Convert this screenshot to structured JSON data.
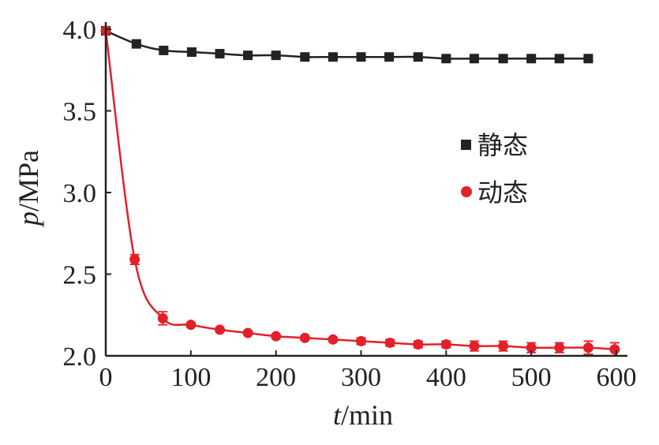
{
  "chart_data": {
    "type": "line",
    "xlabel_var": "t",
    "xlabel_unit": "/min",
    "ylabel_var": "p",
    "ylabel_unit": "/MPa",
    "xlim": [
      0,
      600
    ],
    "ylim": [
      2.0,
      4.0
    ],
    "xticks": [
      0,
      100,
      200,
      300,
      400,
      500,
      600
    ],
    "yticks": [
      2.0,
      2.5,
      3.0,
      3.5,
      4.0
    ],
    "xtick_labels": [
      "0",
      "100",
      "200",
      "300",
      "400",
      "500",
      "600"
    ],
    "ytick_labels": [
      "2.0",
      "2.5",
      "3.0",
      "3.5",
      "4.0"
    ],
    "legend_placement": "right-middle",
    "series": [
      {
        "name": "静态",
        "marker": "square",
        "color": "#222222",
        "x": [
          0,
          36,
          68,
          101,
          134,
          167,
          200,
          234,
          267,
          300,
          333,
          367,
          400,
          433,
          467,
          500,
          533,
          567
        ],
        "y": [
          3.99,
          3.91,
          3.87,
          3.86,
          3.85,
          3.84,
          3.84,
          3.83,
          3.83,
          3.83,
          3.83,
          3.83,
          3.82,
          3.82,
          3.82,
          3.82,
          3.82,
          3.82
        ],
        "err": [
          0.01,
          0.01,
          0.01,
          0.01,
          0.01,
          0.01,
          0.01,
          0.01,
          0.01,
          0.01,
          0.01,
          0.01,
          0.01,
          0.01,
          0.01,
          0.01,
          0.01,
          0.01
        ]
      },
      {
        "name": "动态",
        "marker": "circle",
        "color": "#e3202a",
        "x": [
          0,
          34,
          67,
          100,
          134,
          167,
          200,
          234,
          267,
          300,
          334,
          367,
          400,
          433,
          467,
          500,
          533,
          567,
          598
        ],
        "y": [
          3.99,
          2.59,
          2.23,
          2.19,
          2.16,
          2.14,
          2.12,
          2.11,
          2.1,
          2.09,
          2.08,
          2.07,
          2.07,
          2.06,
          2.06,
          2.05,
          2.05,
          2.05,
          2.04
        ],
        "err": [
          0.01,
          0.03,
          0.04,
          0.01,
          0.01,
          0.01,
          0.01,
          0.01,
          0.01,
          0.02,
          0.02,
          0.02,
          0.02,
          0.03,
          0.03,
          0.03,
          0.03,
          0.04,
          0.04
        ]
      }
    ]
  }
}
